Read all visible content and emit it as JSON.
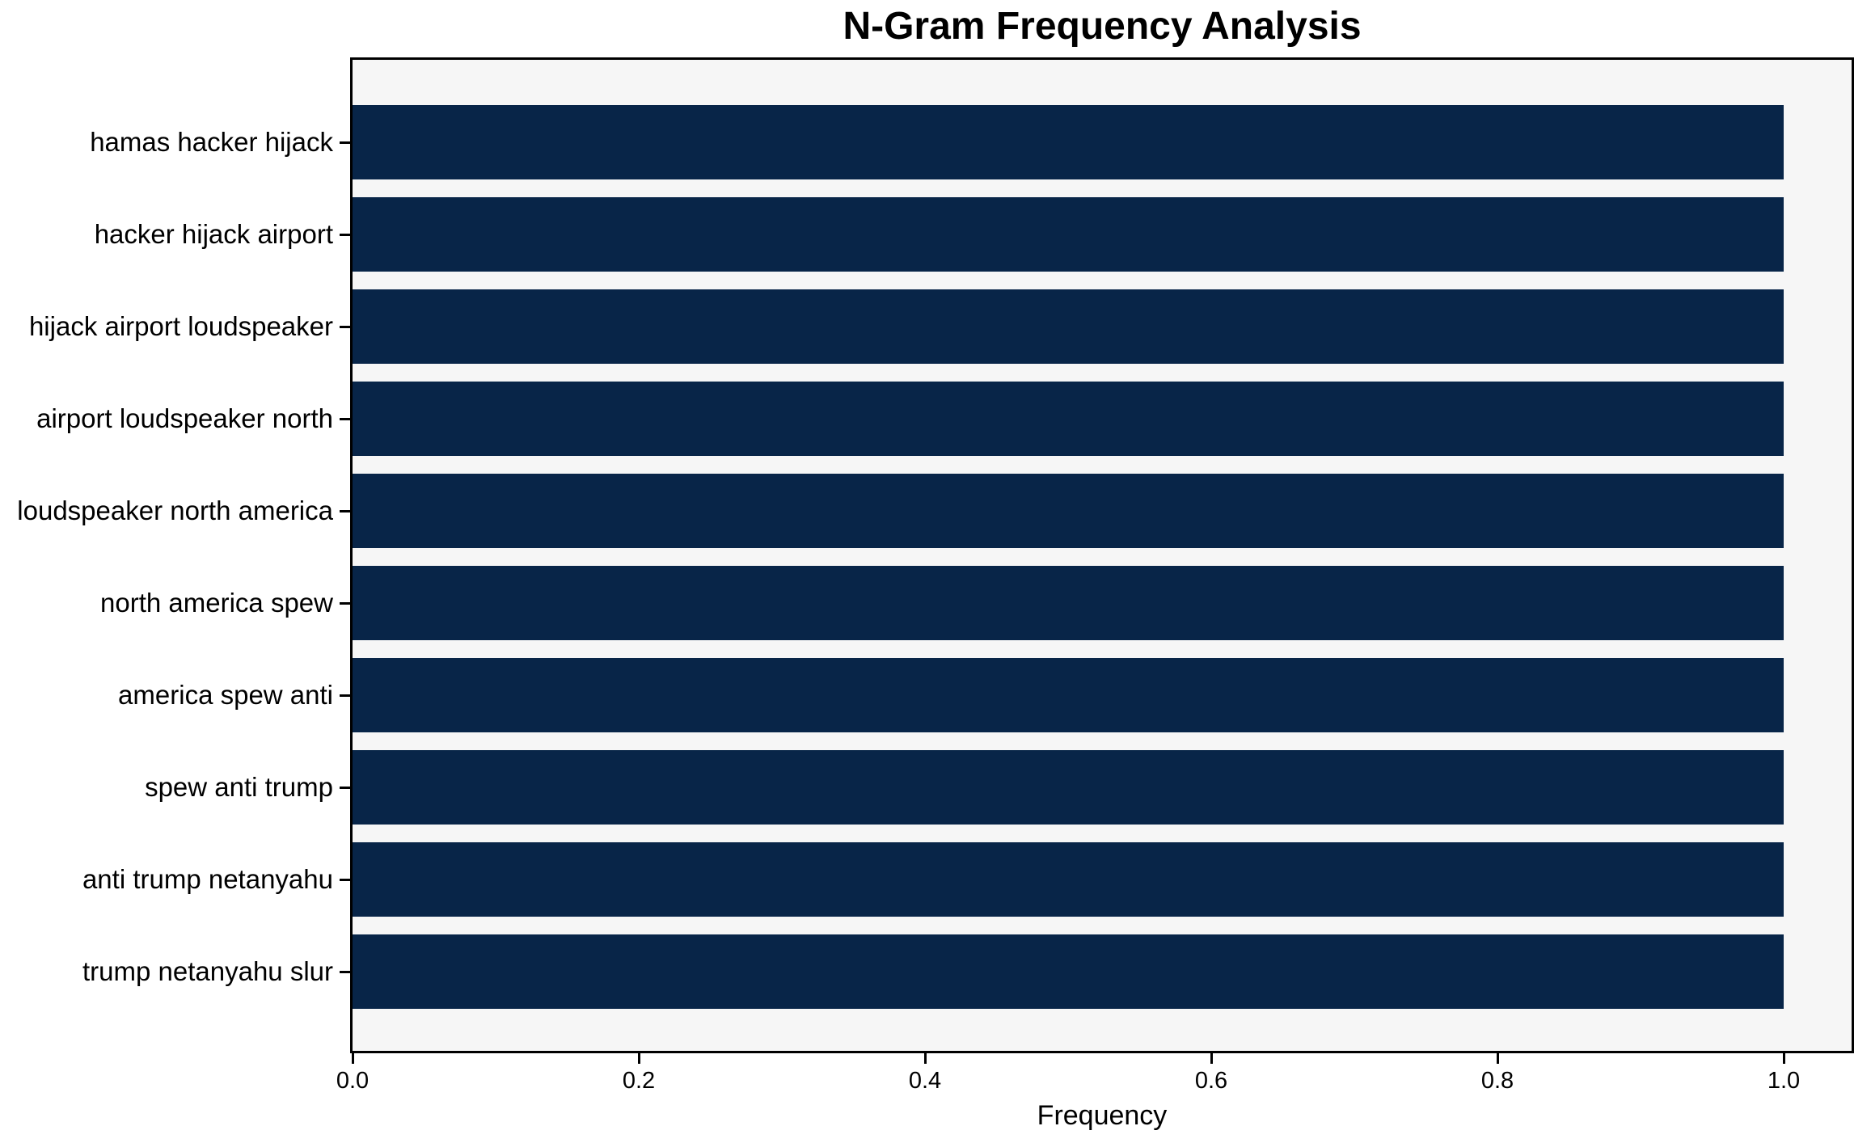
{
  "chart_data": {
    "type": "bar",
    "orientation": "horizontal",
    "title": "N-Gram Frequency Analysis",
    "xlabel": "Frequency",
    "ylabel": "",
    "categories": [
      "hamas hacker hijack",
      "hacker hijack airport",
      "hijack airport loudspeaker",
      "airport loudspeaker north",
      "loudspeaker north america",
      "north america spew",
      "america spew anti",
      "spew anti trump",
      "anti trump netanyahu",
      "trump netanyahu slur"
    ],
    "values": [
      1.0,
      1.0,
      1.0,
      1.0,
      1.0,
      1.0,
      1.0,
      1.0,
      1.0,
      1.0
    ],
    "xlim": [
      0.0,
      1.05
    ],
    "xticks": [
      0.0,
      0.2,
      0.4,
      0.6,
      0.8,
      1.0
    ],
    "xtick_labels": [
      "0.0",
      "0.2",
      "0.4",
      "0.6",
      "0.8",
      "1.0"
    ],
    "grid": false,
    "legend": null,
    "bar_color": "#082548",
    "plot_background": "#f6f6f6",
    "figure_background": "#ffffff",
    "spine_color": "#000000"
  }
}
